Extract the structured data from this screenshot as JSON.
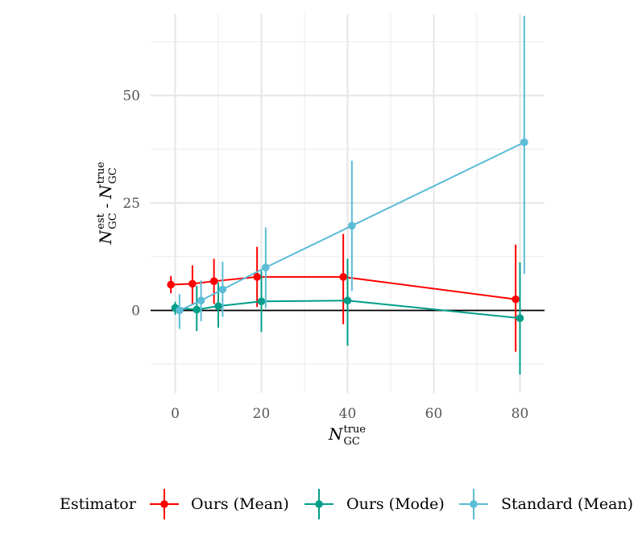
{
  "chart_data": {
    "type": "line",
    "xlabel": {
      "base": "N",
      "sub": "GC",
      "sup": "true"
    },
    "ylabel": {
      "part1_base": "N",
      "part1_sub": "GC",
      "part1_sup": "est",
      "separator": " - ",
      "part2_base": "N",
      "part2_sub": "GC",
      "part2_sup": "true"
    },
    "x_ticks": [
      0,
      20,
      40,
      60,
      80
    ],
    "y_ticks": [
      0,
      25,
      50
    ],
    "xlim": [
      -6,
      86
    ],
    "ylim": [
      -19,
      69
    ],
    "grid": true,
    "reference_line_y": 0,
    "legend": {
      "title": "Estimator",
      "position": "bottom"
    },
    "series": [
      {
        "name": "Ours (Mean)",
        "color": "#FF0000",
        "points": [
          {
            "x": -1,
            "y": 6,
            "ymin": 4,
            "ymax": 8
          },
          {
            "x": 4,
            "y": 6.2,
            "ymin": 1.5,
            "ymax": 10.5
          },
          {
            "x": 9,
            "y": 6.8,
            "ymin": 1.5,
            "ymax": 12
          },
          {
            "x": 19,
            "y": 7.8,
            "ymin": 0.8,
            "ymax": 14.8
          },
          {
            "x": 39,
            "y": 7.8,
            "ymin": -3.2,
            "ymax": 17.8
          },
          {
            "x": 79,
            "y": 2.6,
            "ymin": -9.6,
            "ymax": 15.3
          }
        ]
      },
      {
        "name": "Ours (Mode)",
        "color": "#009E88",
        "points": [
          {
            "x": 0,
            "y": 0.6,
            "ymin": -1,
            "ymax": 2
          },
          {
            "x": 5,
            "y": 0.2,
            "ymin": -4.8,
            "ymax": 5.7
          },
          {
            "x": 10,
            "y": 1,
            "ymin": -4,
            "ymax": 6.5
          },
          {
            "x": 20,
            "y": 2.1,
            "ymin": -5,
            "ymax": 9.2
          },
          {
            "x": 40,
            "y": 2.3,
            "ymin": -8.2,
            "ymax": 12
          },
          {
            "x": 80,
            "y": -1.8,
            "ymin": -14.9,
            "ymax": 11.2
          }
        ]
      },
      {
        "name": "Standard (Mean)",
        "color": "#5BBCD6",
        "points": [
          {
            "x": 1,
            "y": 0,
            "ymin": -4.3,
            "ymax": 3.8
          },
          {
            "x": 6,
            "y": 2.3,
            "ymin": -2.5,
            "ymax": 7
          },
          {
            "x": 11,
            "y": 4.9,
            "ymin": -1.5,
            "ymax": 11.3
          },
          {
            "x": 21,
            "y": 10,
            "ymin": 0.5,
            "ymax": 19.3
          },
          {
            "x": 41,
            "y": 19.7,
            "ymin": 4.5,
            "ymax": 34.8
          },
          {
            "x": 81,
            "y": 39.1,
            "ymin": 8.5,
            "ymax": 68.5
          }
        ]
      }
    ]
  }
}
